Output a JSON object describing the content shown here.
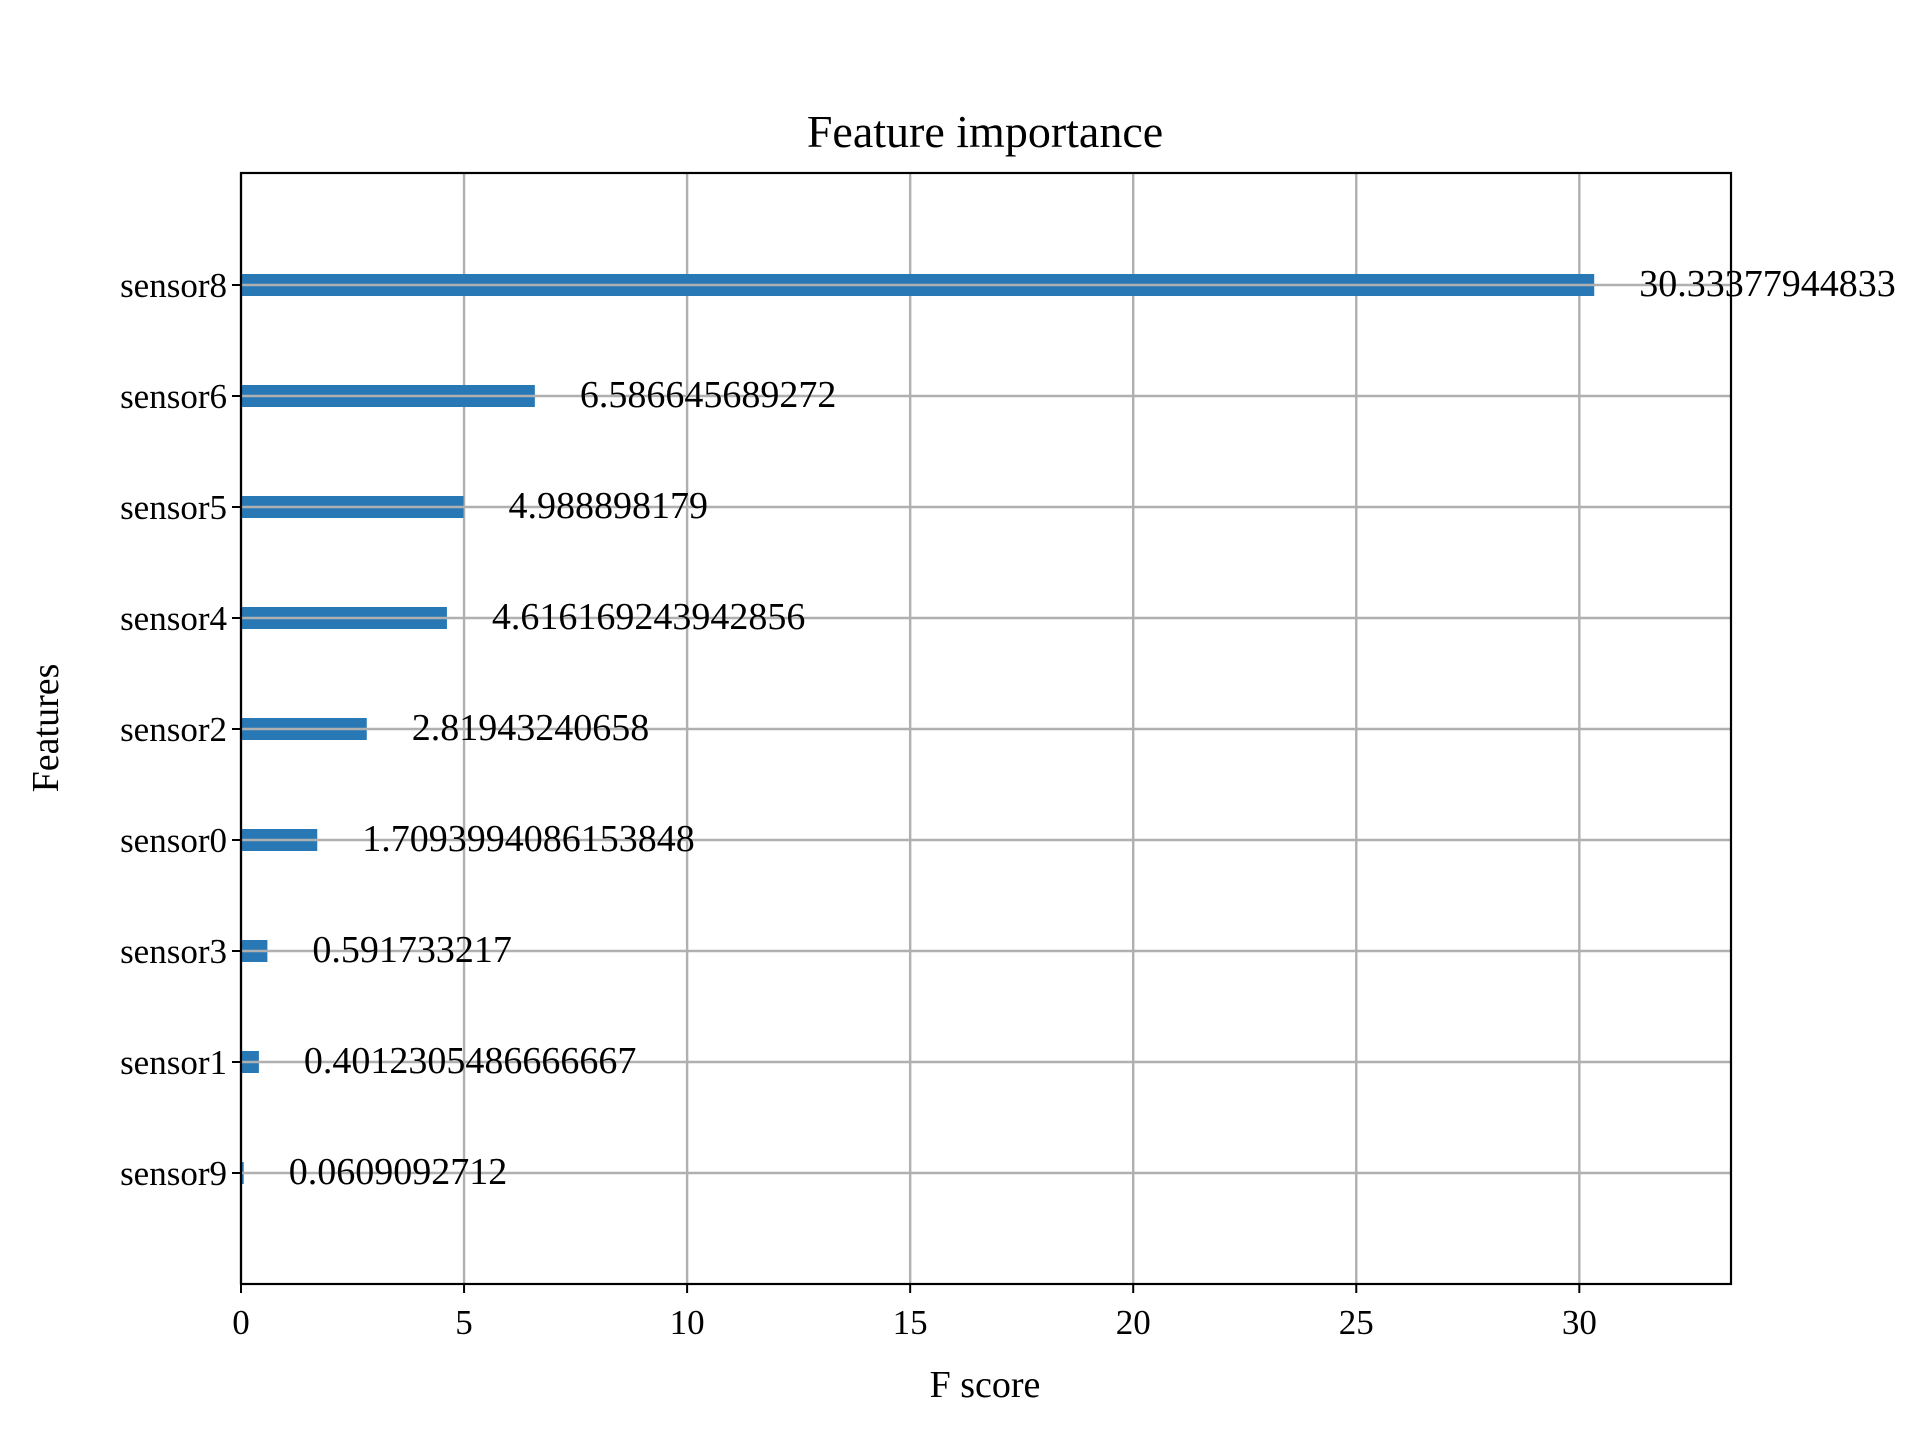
{
  "chart_data": {
    "type": "bar",
    "orientation": "horizontal",
    "title": "Feature importance",
    "xlabel": "F score",
    "ylabel": "Features",
    "categories": [
      "sensor9",
      "sensor1",
      "sensor3",
      "sensor0",
      "sensor2",
      "sensor4",
      "sensor5",
      "sensor6",
      "sensor8"
    ],
    "values": [
      0.0609092712,
      0.4012305486666667,
      0.591733217,
      1.7093994086153848,
      2.81943240658,
      4.616169243942856,
      4.988898179,
      6.586645689272,
      30.33377944833
    ],
    "value_labels": [
      "0.0609092712",
      "0.4012305486666667",
      "0.591733217",
      "1.7093994086153848",
      "2.81943240658",
      "4.616169243942856",
      "4.988898179",
      "6.586645689272",
      "30.33377944833"
    ],
    "xlim": [
      0,
      33.4
    ],
    "xticks": [
      0,
      5,
      10,
      15,
      20,
      25,
      30
    ],
    "grid": true,
    "bar_color": "#2878b5",
    "grid_color": "#b0b0b0"
  }
}
